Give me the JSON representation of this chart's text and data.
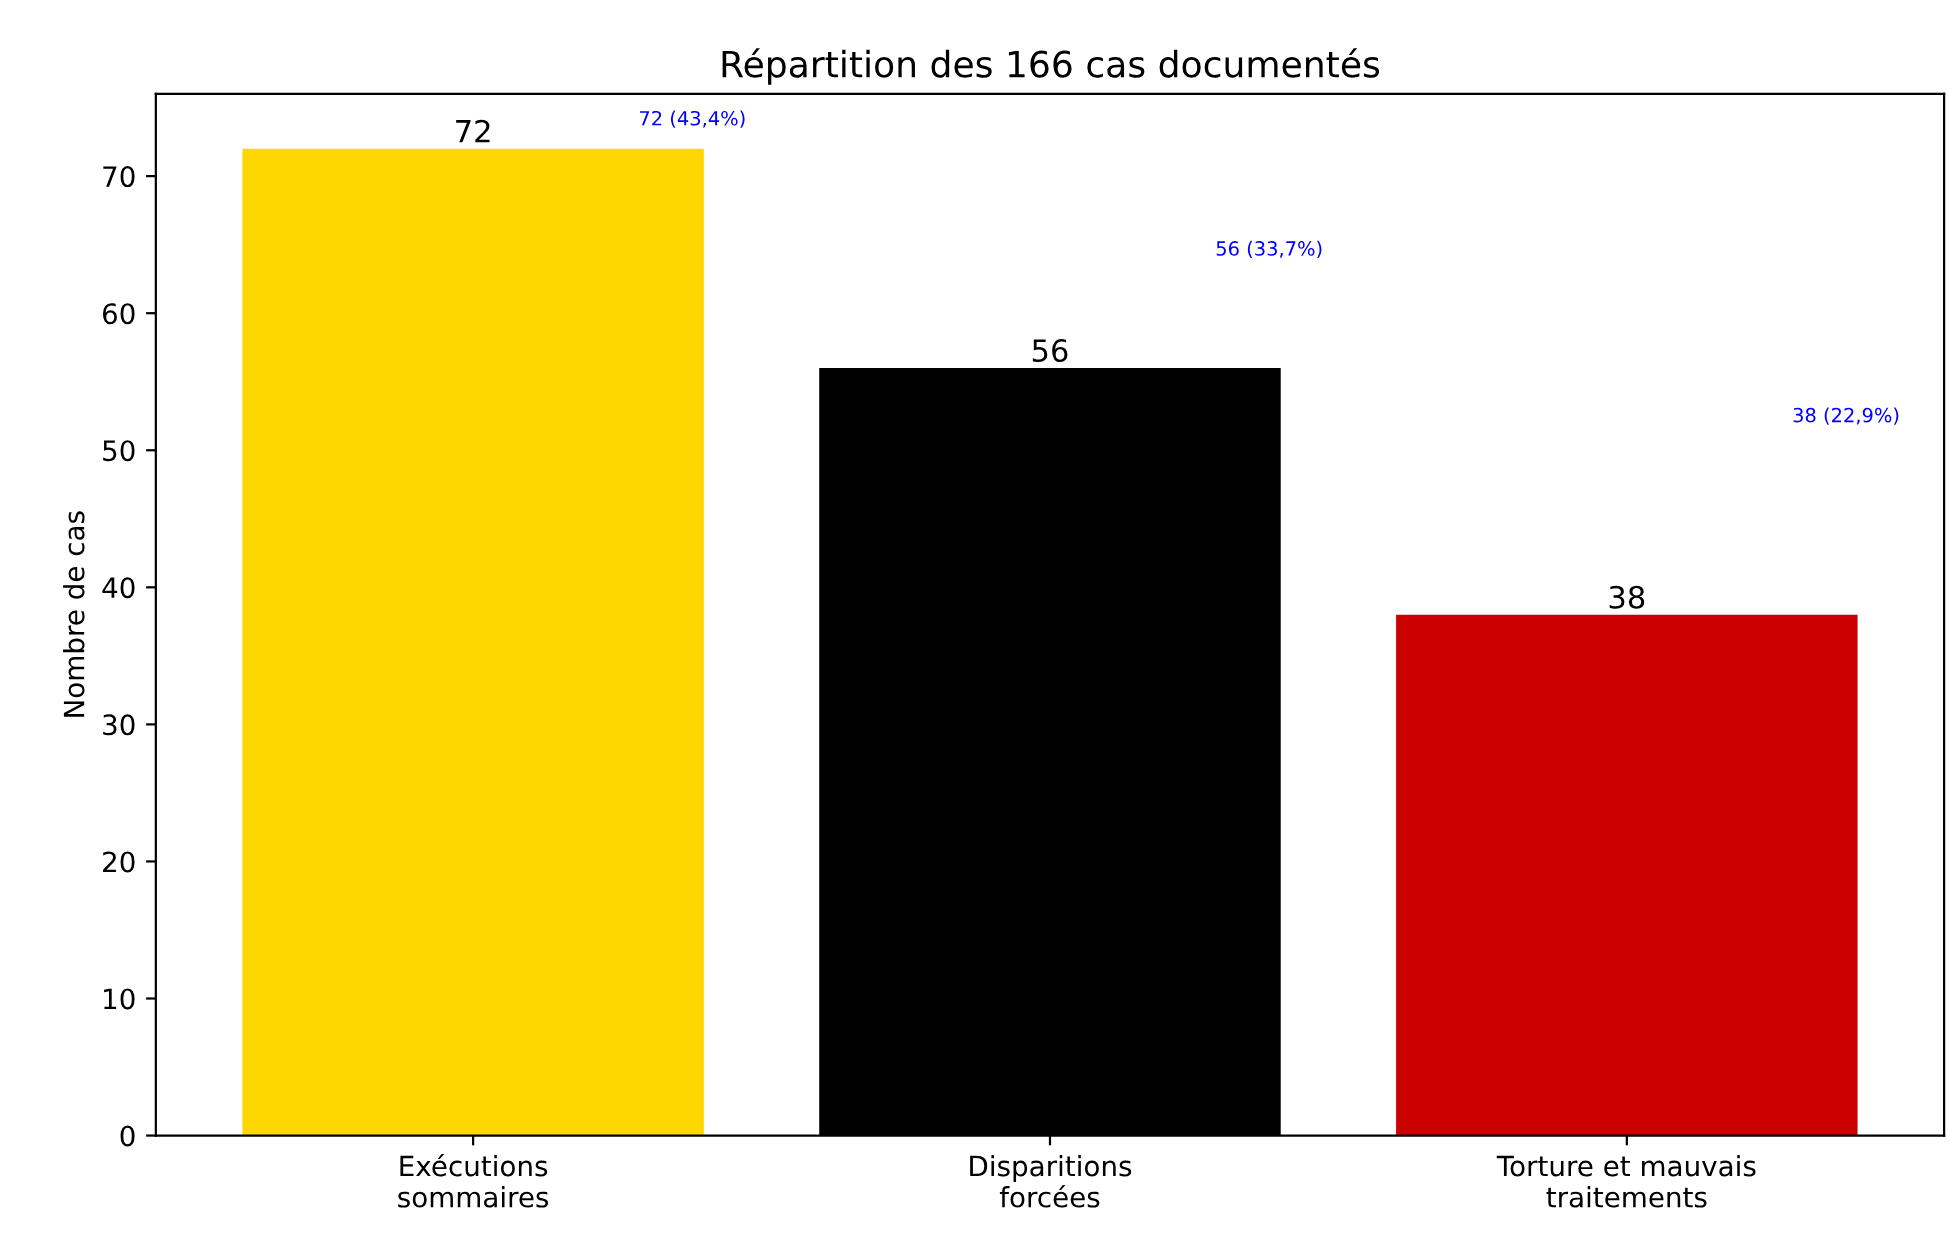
{
  "chart_data": {
    "type": "bar",
    "title": "Répartition des 166 cas documentés",
    "ylabel": "Nombre de cas",
    "categories": [
      "Exécutions\nsommaires",
      "Disparitions\nforcées",
      "Torture et mauvais\ntraitements"
    ],
    "values": [
      72,
      56,
      38
    ],
    "colors": [
      "#ffd700",
      "#000000",
      "#cc0000"
    ],
    "data_labels": true,
    "ylim": [
      0,
      76
    ],
    "yticks": [
      0,
      10,
      20,
      30,
      40,
      50,
      60,
      70
    ],
    "annotations": [
      "72 (43,4%)",
      "56 (33,7%)",
      "38 (22,9%)"
    ],
    "grid": false
  }
}
